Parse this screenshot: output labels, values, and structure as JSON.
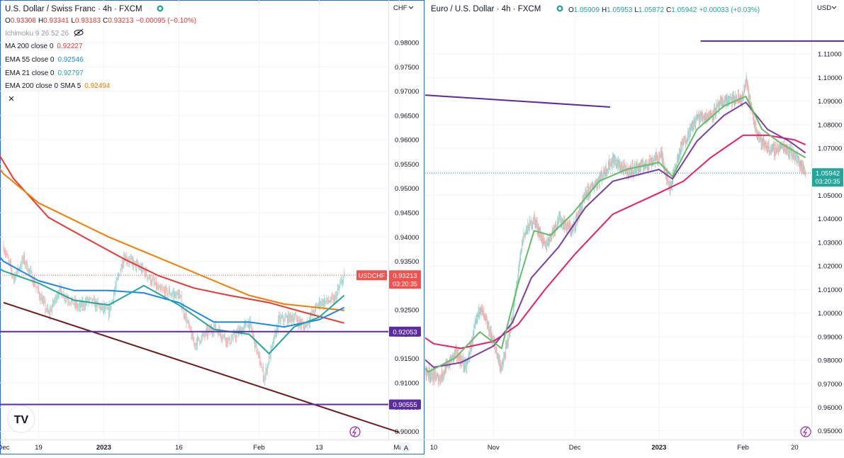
{
  "left": {
    "title": "U.S. Dollar / Swiss Franc · 4h · FXCM",
    "ohlc": {
      "o_label": "O",
      "o": "0.93308",
      "h_label": "H",
      "h": "0.93341",
      "l_label": "L",
      "l": "0.93183",
      "c_label": "C",
      "c": "0.93213",
      "change": "−0.00095 (−0.10%)"
    },
    "indicators": [
      {
        "label": "Ichimoku 9 26 52 26",
        "value": "",
        "color": "#787b86"
      },
      {
        "label": "MA 200 close 0",
        "value": "0.92227",
        "color": "#e53935"
      },
      {
        "label": "EMA 55 close 0",
        "value": "0.92546",
        "color": "#1e88e5"
      },
      {
        "label": "EMA 21 close 0",
        "value": "0.92797",
        "color": "#26a69a"
      },
      {
        "label": "EMA 200 close 0 SMA 5",
        "value": "0.92494",
        "color": "#f57c00"
      }
    ],
    "currency": "CHF",
    "symbol_tag": "USDCHF",
    "last_price": "0.93213",
    "countdown": "03:20:35",
    "level_1": "0.92053",
    "level_2": "0.90555",
    "auto_scale": "A",
    "logo": "TV"
  },
  "right": {
    "title": "Euro / U.S. Dollar · 4h · FXCM",
    "ohlc": {
      "o_label": "O",
      "o": "1.05909",
      "h_label": "H",
      "h": "1.05953",
      "l_label": "L",
      "l": "1.05872",
      "c_label": "C",
      "c": "1.05942",
      "change": "+0.00033 (+0.03%)"
    },
    "currency": "USD",
    "last_price": "1.05942",
    "countdown": "03:20:35"
  },
  "chart_data": [
    {
      "type": "candlestick",
      "title": "U.S. Dollar / Swiss Franc · 4h · FXCM",
      "ylim": [
        0.8995,
        0.9835
      ],
      "y_ticks": [
        "0.98000",
        "0.97500",
        "0.97000",
        "0.96500",
        "0.96000",
        "0.95500",
        "0.95000",
        "0.94500",
        "0.94000",
        "0.93500",
        "0.93000",
        "0.92500",
        "0.92000",
        "0.91500",
        "0.91000",
        "0.90500",
        "0.90000"
      ],
      "x_ticks": [
        "Dec",
        "19",
        "2023",
        "16",
        "Feb",
        "13",
        "Mar"
      ],
      "x_tick_dates": [
        "2022-12-12",
        "2022-12-19",
        "2023-01-01",
        "2023-01-16",
        "2023-02-01",
        "2023-02-13",
        "2023-03-01"
      ],
      "horizontal_levels": [
        0.92053,
        0.90555
      ],
      "trend_line": {
        "from": [
          "2022-12-12",
          0.9265
        ],
        "to": [
          "2023-03-01",
          0.8998
        ]
      },
      "last_close": 0.93213,
      "price_path": [
        [
          "2022-12-12",
          0.938
        ],
        [
          "2022-12-14",
          0.9315
        ],
        [
          "2022-12-16",
          0.9355
        ],
        [
          "2022-12-19",
          0.9285
        ],
        [
          "2022-12-21",
          0.924
        ],
        [
          "2022-12-23",
          0.929
        ],
        [
          "2022-12-27",
          0.9255
        ],
        [
          "2022-12-29",
          0.927
        ],
        [
          "2023-01-02",
          0.9245
        ],
        [
          "2023-01-05",
          0.936
        ],
        [
          "2023-01-09",
          0.933
        ],
        [
          "2023-01-12",
          0.929
        ],
        [
          "2023-01-16",
          0.928
        ],
        [
          "2023-01-19",
          0.918
        ],
        [
          "2023-01-23",
          0.9215
        ],
        [
          "2023-01-26",
          0.9185
        ],
        [
          "2023-01-30",
          0.9225
        ],
        [
          "2023-02-02",
          0.911
        ],
        [
          "2023-02-05",
          0.923
        ],
        [
          "2023-02-08",
          0.9235
        ],
        [
          "2023-02-10",
          0.9215
        ],
        [
          "2023-02-13",
          0.9265
        ],
        [
          "2023-02-16",
          0.927
        ],
        [
          "2023-02-18",
          0.9321
        ]
      ],
      "series": [
        {
          "name": "MA 200 close 0",
          "last": 0.92227,
          "color": "#e53935",
          "points": [
            [
              "2022-11-28",
              0.977
            ],
            [
              "2022-12-07",
              0.964
            ],
            [
              "2022-12-14",
              0.952
            ],
            [
              "2022-12-21",
              0.944
            ],
            [
              "2022-12-28",
              0.94
            ],
            [
              "2023-01-05",
              0.9355
            ],
            [
              "2023-01-12",
              0.932
            ],
            [
              "2023-01-19",
              0.9295
            ],
            [
              "2023-01-26",
              0.928
            ],
            [
              "2023-02-03",
              0.9265
            ],
            [
              "2023-02-10",
              0.9245
            ],
            [
              "2023-02-18",
              0.9223
            ]
          ]
        },
        {
          "name": "EMA 200 close 0 SMA 5",
          "last": 0.92494,
          "color": "#f57c00",
          "points": [
            [
              "2022-11-28",
              0.97
            ],
            [
              "2022-12-05",
              0.962
            ],
            [
              "2022-12-12",
              0.953
            ],
            [
              "2022-12-19",
              0.947
            ],
            [
              "2022-12-26",
              0.9435
            ],
            [
              "2023-01-02",
              0.94
            ],
            [
              "2023-01-09",
              0.937
            ],
            [
              "2023-01-16",
              0.934
            ],
            [
              "2023-01-23",
              0.931
            ],
            [
              "2023-01-30",
              0.928
            ],
            [
              "2023-02-06",
              0.9262
            ],
            [
              "2023-02-18",
              0.9249
            ]
          ]
        },
        {
          "name": "EMA 55 close 0",
          "last": 0.92546,
          "color": "#1e88e5",
          "points": [
            [
              "2022-11-28",
              0.951
            ],
            [
              "2022-12-02",
              0.945
            ],
            [
              "2022-12-07",
              0.941
            ],
            [
              "2022-12-12",
              0.935
            ],
            [
              "2022-12-19",
              0.931
            ],
            [
              "2022-12-26",
              0.929
            ],
            [
              "2023-01-02",
              0.929
            ],
            [
              "2023-01-09",
              0.9285
            ],
            [
              "2023-01-16",
              0.9265
            ],
            [
              "2023-01-23",
              0.9225
            ],
            [
              "2023-01-30",
              0.9225
            ],
            [
              "2023-02-06",
              0.9215
            ],
            [
              "2023-02-13",
              0.923
            ],
            [
              "2023-02-18",
              0.9255
            ]
          ]
        },
        {
          "name": "EMA 21 close 0",
          "last": 0.92797,
          "color": "#26a69a",
          "points": [
            [
              "2022-11-28",
              0.94
            ],
            [
              "2022-12-05",
              0.937
            ],
            [
              "2022-12-12",
              0.933
            ],
            [
              "2022-12-19",
              0.9305
            ],
            [
              "2022-12-26",
              0.927
            ],
            [
              "2023-01-02",
              0.926
            ],
            [
              "2023-01-09",
              0.93
            ],
            [
              "2023-01-16",
              0.926
            ],
            [
              "2023-01-23",
              0.921
            ],
            [
              "2023-01-30",
              0.92
            ],
            [
              "2023-02-03",
              0.916
            ],
            [
              "2023-02-08",
              0.9215
            ],
            [
              "2023-02-13",
              0.9235
            ],
            [
              "2023-02-18",
              0.928
            ]
          ]
        }
      ]
    },
    {
      "type": "candlestick",
      "title": "Euro / U.S. Dollar · 4h · FXCM",
      "ylim": [
        0.9475,
        1.1215
      ],
      "y_ticks": [
        "1.11000",
        "1.10000",
        "1.09000",
        "1.08000",
        "1.07000",
        "1.06000",
        "1.05000",
        "1.04000",
        "1.03000",
        "1.02000",
        "1.01000",
        "1.00000",
        "0.99000",
        "0.98000",
        "0.97000",
        "0.96000",
        "0.95000"
      ],
      "x_ticks": [
        "10",
        "Nov",
        "Dec",
        "2023",
        "Feb",
        "20"
      ],
      "x_tick_dates": [
        "2022-10-10",
        "2022-11-01",
        "2022-12-01",
        "2023-01-01",
        "2023-02-01",
        "2023-02-20"
      ],
      "trend_line": {
        "from": [
          "2022-10-01",
          1.093
        ],
        "to": [
          "2022-12-14",
          1.0875
        ]
      },
      "top_level": 1.1155,
      "last_close": 1.05942,
      "price_path": [
        [
          "2022-10-01",
          0.984
        ],
        [
          "2022-10-06",
          0.976
        ],
        [
          "2022-10-12",
          0.972
        ],
        [
          "2022-10-18",
          0.983
        ],
        [
          "2022-10-22",
          0.977
        ],
        [
          "2022-10-27",
          1.003
        ],
        [
          "2022-11-01",
          0.988
        ],
        [
          "2022-11-04",
          0.976
        ],
        [
          "2022-11-08",
          0.998
        ],
        [
          "2022-11-12",
          1.033
        ],
        [
          "2022-11-16",
          1.04
        ],
        [
          "2022-11-20",
          1.028
        ],
        [
          "2022-11-25",
          1.04
        ],
        [
          "2022-11-30",
          1.035
        ],
        [
          "2022-12-05",
          1.05
        ],
        [
          "2022-12-10",
          1.057
        ],
        [
          "2022-12-15",
          1.065
        ],
        [
          "2022-12-20",
          1.06
        ],
        [
          "2022-12-27",
          1.063
        ],
        [
          "2023-01-02",
          1.067
        ],
        [
          "2023-01-05",
          1.053
        ],
        [
          "2023-01-09",
          1.07
        ],
        [
          "2023-01-15",
          1.083
        ],
        [
          "2023-01-20",
          1.084
        ],
        [
          "2023-01-25",
          1.09
        ],
        [
          "2023-02-01",
          1.091
        ],
        [
          "2023-02-02",
          1.099
        ],
        [
          "2023-02-05",
          1.081
        ],
        [
          "2023-02-08",
          1.072
        ],
        [
          "2023-02-12",
          1.069
        ],
        [
          "2023-02-16",
          1.071
        ],
        [
          "2023-02-20",
          1.067
        ],
        [
          "2023-02-24",
          1.0594
        ]
      ],
      "series": [
        {
          "name": "",
          "color": "#e91e63",
          "points": [
            [
              "2022-10-01",
              0.994
            ],
            [
              "2022-10-10",
              0.987
            ],
            [
              "2022-10-20",
              0.985
            ],
            [
              "2022-11-01",
              0.988
            ],
            [
              "2022-11-10",
              0.995
            ],
            [
              "2022-11-20",
              1.01
            ],
            [
              "2022-12-01",
              1.025
            ],
            [
              "2022-12-15",
              1.042
            ],
            [
              "2023-01-01",
              1.051
            ],
            [
              "2023-01-10",
              1.056
            ],
            [
              "2023-01-20",
              1.066
            ],
            [
              "2023-02-01",
              1.0755
            ],
            [
              "2023-02-10",
              1.0755
            ],
            [
              "2023-02-20",
              1.0735
            ],
            [
              "2023-02-24",
              1.0715
            ]
          ]
        },
        {
          "name": "",
          "color": "#7b3fa0",
          "points": [
            [
              "2022-10-01",
              0.986
            ],
            [
              "2022-10-10",
              0.977
            ],
            [
              "2022-10-20",
              0.979
            ],
            [
              "2022-11-01",
              0.986
            ],
            [
              "2022-11-08",
              0.996
            ],
            [
              "2022-11-15",
              1.015
            ],
            [
              "2022-11-25",
              1.028
            ],
            [
              "2022-12-05",
              1.045
            ],
            [
              "2022-12-15",
              1.056
            ],
            [
              "2023-01-01",
              1.061
            ],
            [
              "2023-01-06",
              1.057
            ],
            [
              "2023-01-15",
              1.073
            ],
            [
              "2023-01-25",
              1.084
            ],
            [
              "2023-02-02",
              1.0895
            ],
            [
              "2023-02-10",
              1.078
            ],
            [
              "2023-02-18",
              1.073
            ],
            [
              "2023-02-24",
              1.068
            ]
          ]
        },
        {
          "name": "",
          "color": "#66bb6a",
          "points": [
            [
              "2022-10-01",
              0.984
            ],
            [
              "2022-10-08",
              0.975
            ],
            [
              "2022-10-18",
              0.981
            ],
            [
              "2022-10-27",
              0.992
            ],
            [
              "2022-11-04",
              0.985
            ],
            [
              "2022-11-10",
              1.012
            ],
            [
              "2022-11-16",
              1.035
            ],
            [
              "2022-11-22",
              1.033
            ],
            [
              "2022-11-30",
              1.042
            ],
            [
              "2022-12-10",
              1.056
            ],
            [
              "2022-12-20",
              1.061
            ],
            [
              "2023-01-01",
              1.064
            ],
            [
              "2023-01-06",
              1.058
            ],
            [
              "2023-01-15",
              1.078
            ],
            [
              "2023-01-25",
              1.088
            ],
            [
              "2023-02-02",
              1.092
            ],
            [
              "2023-02-08",
              1.078
            ],
            [
              "2023-02-15",
              1.072
            ],
            [
              "2023-02-24",
              1.066
            ]
          ]
        }
      ]
    }
  ]
}
